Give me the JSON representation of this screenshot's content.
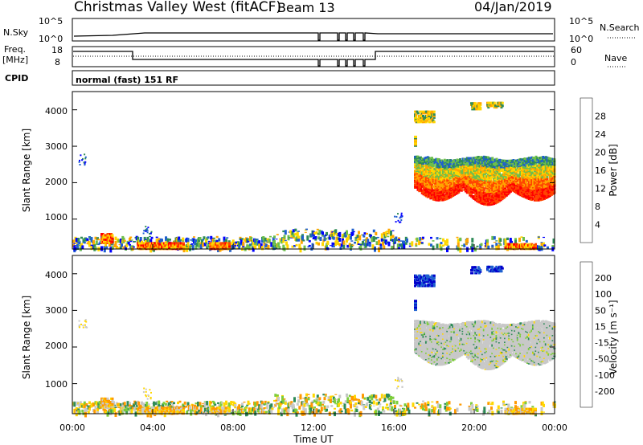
{
  "header": {
    "site_title": "Christmas Valley West (fitACF)",
    "beam_label": "Beam 13",
    "date": "04/Jan/2019"
  },
  "top_panels": {
    "nsky_label": "N.Sky",
    "nsearch_label": "N.Search",
    "nsky_ticks": [
      "10^5",
      "10^0"
    ],
    "nsky_ticks_right": [
      "10^5",
      "10^0"
    ],
    "freq_label_1": "Freq.",
    "freq_label_2": "[MHz]",
    "freq_ticks": [
      "18",
      "8"
    ],
    "nave_label": "Nave",
    "nave_ticks": [
      "60",
      "0"
    ],
    "cpid_label": "CPID",
    "cpid_value": "normal (fast) 151 RF"
  },
  "chart_data": [
    {
      "type": "heatmap",
      "name": "power",
      "ylabel": "Slant Range [km]",
      "yticks": [
        1000,
        2000,
        3000,
        4000
      ],
      "ylim": [
        180,
        4500
      ],
      "colorbar_label": "Power [dB]",
      "colorbar_ticks": [
        "28",
        "24",
        "20",
        "16",
        "12",
        "8",
        "4"
      ],
      "colors": [
        "#0000ff",
        "#1f5fcf",
        "#2e8b57",
        "#6dbf4b",
        "#ffd700",
        "#ffa500",
        "#ff4500",
        "#ff0000"
      ]
    },
    {
      "type": "heatmap",
      "name": "velocity",
      "ylabel": "Slant Range [km]",
      "yticks": [
        1000,
        2000,
        3000,
        4000
      ],
      "ylim": [
        180,
        4500
      ],
      "colorbar_label": "Velocity [m s⁻¹]",
      "colorbar_ticks": [
        "200",
        "100",
        "50",
        "15",
        "-15",
        "-50",
        "-100",
        "-200"
      ],
      "colors": [
        "#0000cc",
        "#1e60d0",
        "#2e8b57",
        "#7ccd3a",
        "#c8c8c8",
        "#ffd700",
        "#ff9900",
        "#ff6600",
        "#ff0000"
      ]
    }
  ],
  "xaxis": {
    "label": "Time UT",
    "ticks": [
      "00:00",
      "04:00",
      "08:00",
      "12:00",
      "16:00",
      "20:00",
      "00:00"
    ]
  }
}
